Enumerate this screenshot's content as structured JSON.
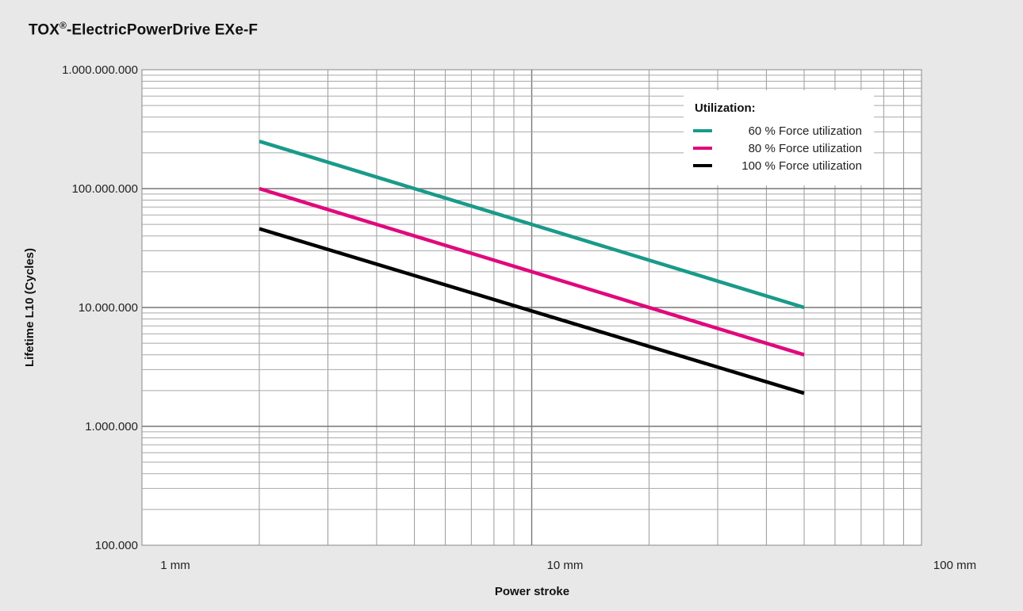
{
  "page": {
    "title_main": "TOX",
    "title_mark": "®",
    "title_rest": "-ElectricPowerDrive EXe-F"
  },
  "chart_data": {
    "type": "line",
    "title": "TOX®-ElectricPowerDrive EXe-F",
    "xlabel": "Power stroke",
    "ylabel": "Lifetime L10 (Cycles)",
    "x_scale": "log",
    "y_scale": "log",
    "xlim": [
      1,
      100
    ],
    "ylim": [
      100000,
      1000000000
    ],
    "x_ticks": [
      {
        "value": 1,
        "label": "1 mm"
      },
      {
        "value": 10,
        "label": "10 mm"
      },
      {
        "value": 100,
        "label": "100 mm"
      }
    ],
    "y_ticks": [
      {
        "value": 100000,
        "label": "100.000"
      },
      {
        "value": 1000000,
        "label": "1.000.000"
      },
      {
        "value": 10000000,
        "label": "10.000.000"
      },
      {
        "value": 100000000,
        "label": "100.000.000"
      },
      {
        "value": 1000000000,
        "label": "1.000.000.000"
      }
    ],
    "grid": true,
    "legend": {
      "title": "Utilization:",
      "position": "top-right"
    },
    "series": [
      {
        "name": "60 % Force utilization",
        "color": "#1a9a8a",
        "x": [
          2,
          50
        ],
        "y": [
          250000000,
          10000000
        ]
      },
      {
        "name": "80 % Force utilization",
        "color": "#e0097c",
        "x": [
          2,
          50
        ],
        "y": [
          100000000,
          4000000
        ]
      },
      {
        "name": "100 % Force utilization",
        "color": "#000000",
        "x": [
          2,
          50
        ],
        "y": [
          46000000,
          1900000
        ]
      }
    ]
  }
}
